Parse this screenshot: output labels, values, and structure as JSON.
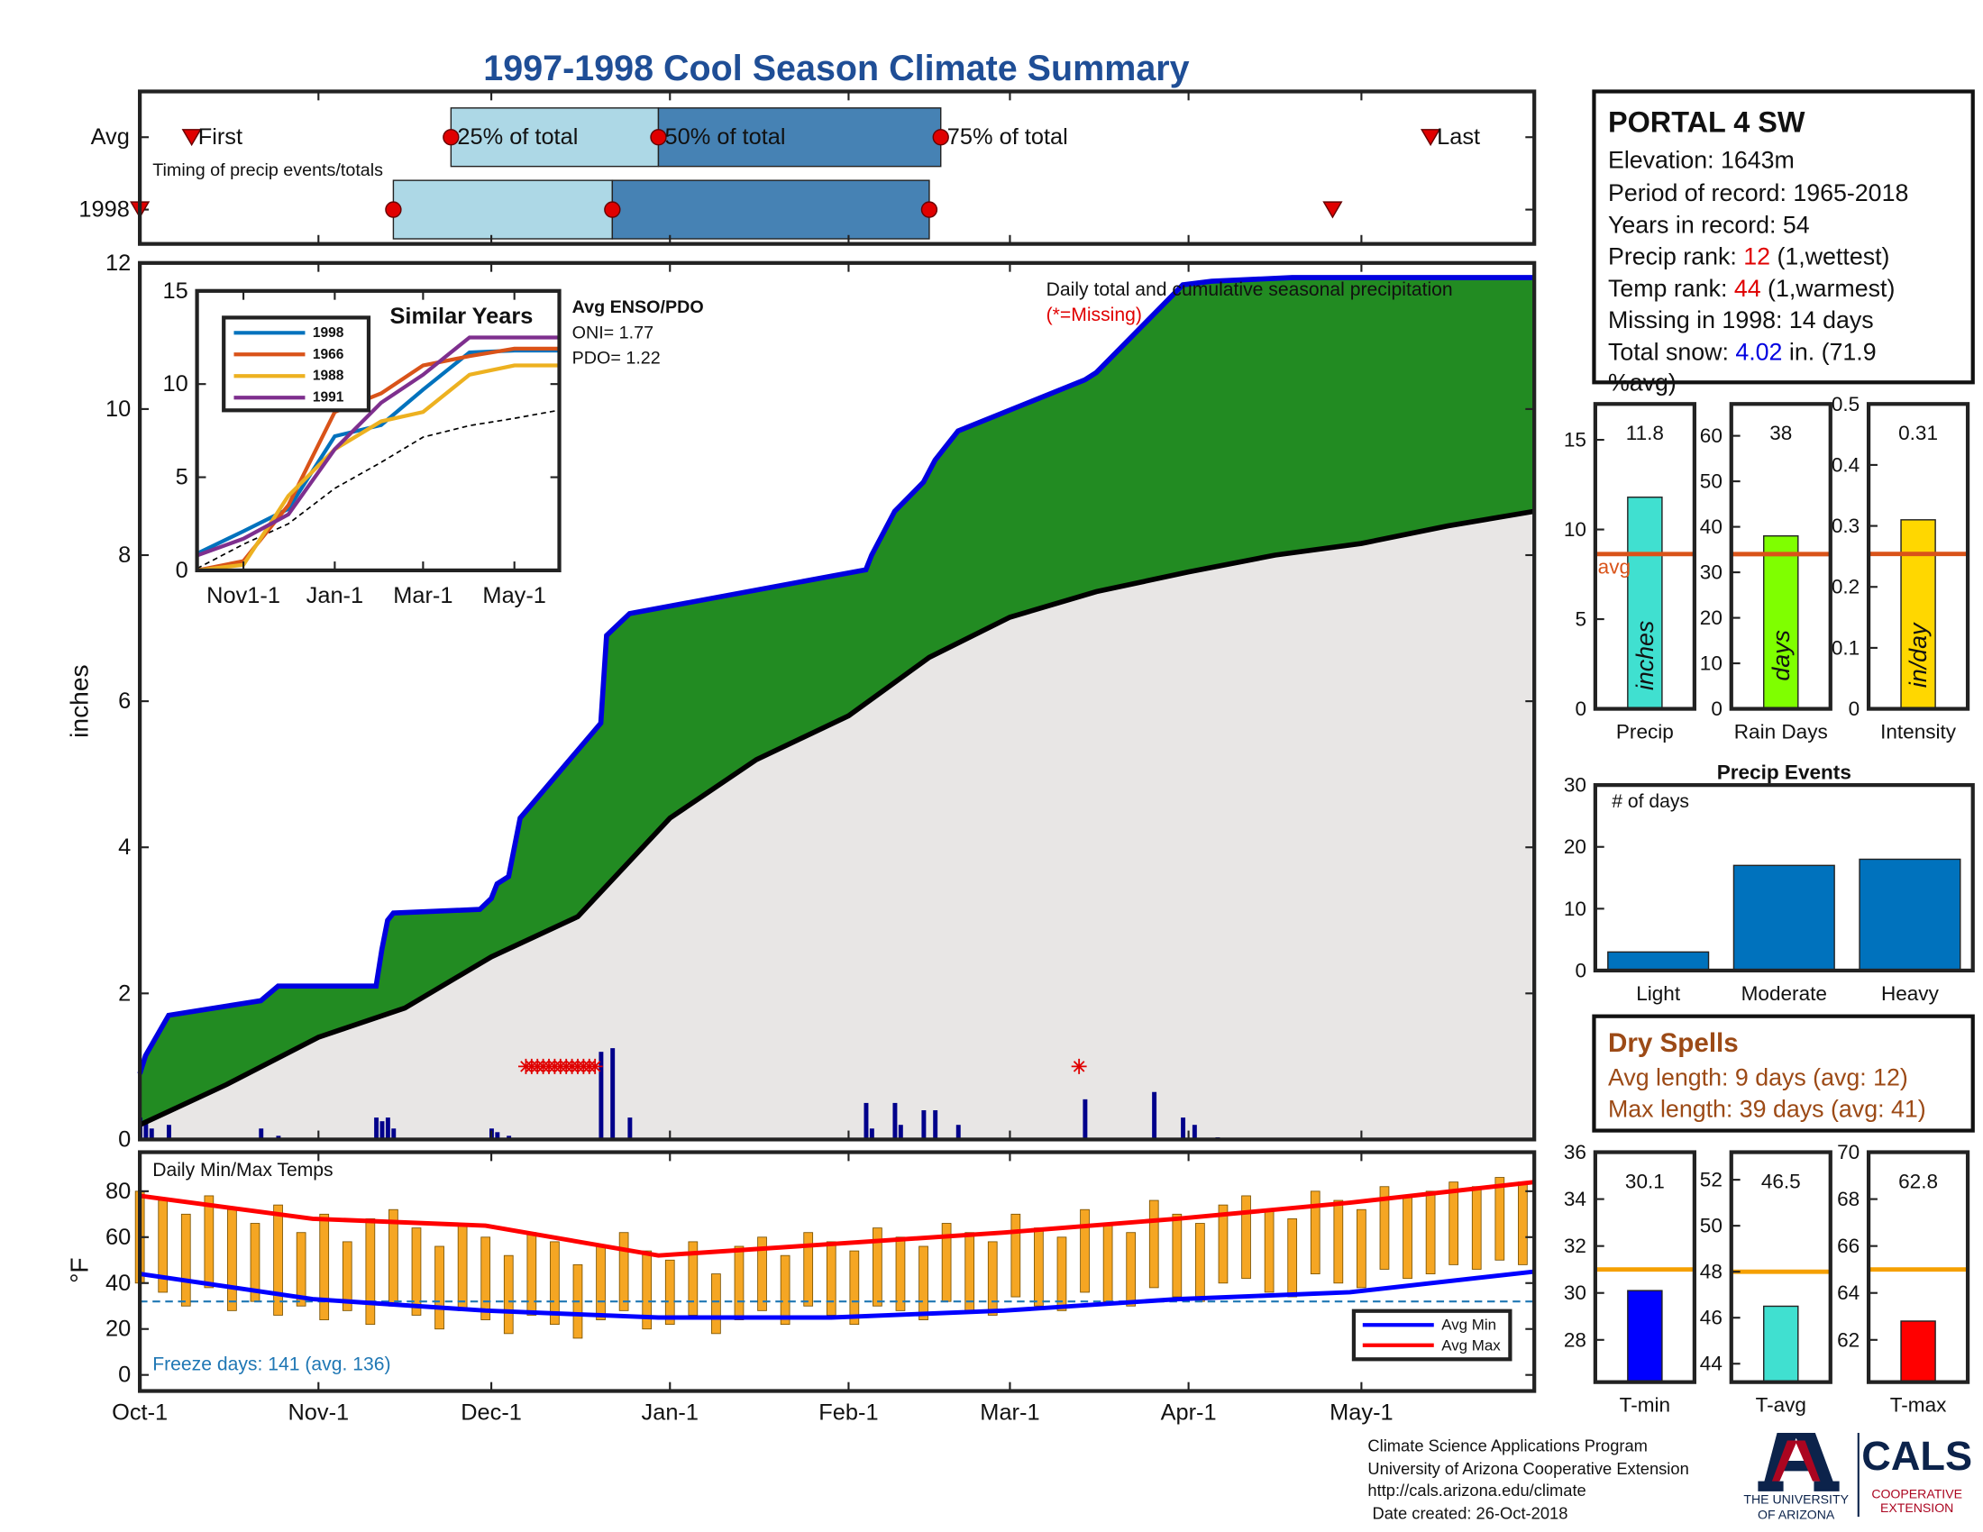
{
  "title": "1997-1998 Cool Season Climate Summary",
  "chart_data": [
    {
      "type": "timing",
      "categories": [
        "Avg",
        "1998"
      ],
      "labels": [
        "First",
        "25% of total",
        "50% of total",
        "75% of total",
        "Last"
      ],
      "values": [
        [
          9,
          54,
          90,
          139,
          224
        ],
        [
          0,
          44,
          82,
          137,
          207
        ]
      ],
      "xlim": [
        0,
        242
      ],
      "annotation": "Timing of precip events/totals",
      "colors": [
        "#add8e6",
        "#4682b4"
      ],
      "marker_color": "#e00000"
    },
    {
      "type": "precip",
      "ylabel": "inches",
      "ylim": [
        0,
        12
      ],
      "yticks": [
        0,
        2,
        4,
        6,
        8,
        10,
        12
      ],
      "xlim": [
        0,
        242
      ],
      "annotation": "Daily total and cumulative seasonal precipitation",
      "missing_label": "(*=Missing)",
      "cumulative": {
        "color": "#0000e0",
        "fill": "#228b22",
        "x": [
          0,
          1,
          5,
          21,
          24,
          41,
          42,
          43,
          44,
          59,
          61,
          62,
          64,
          66,
          80,
          81,
          85,
          126,
          127,
          131,
          136,
          138,
          140,
          142,
          164,
          166,
          176,
          181,
          186,
          200,
          242
        ],
        "values": [
          0.9,
          1.15,
          1.7,
          1.9,
          2.1,
          2.1,
          2.6,
          3.0,
          3.1,
          3.15,
          3.3,
          3.5,
          3.6,
          4.4,
          5.7,
          6.9,
          7.2,
          7.8,
          8.0,
          8.6,
          9.0,
          9.3,
          9.5,
          9.7,
          10.4,
          10.5,
          11.3,
          11.7,
          11.75,
          11.8,
          11.8
        ]
      },
      "average": {
        "color": "#000000",
        "fill": "#e8e6e5",
        "x": [
          0,
          15,
          31,
          46,
          61,
          76,
          92,
          107,
          123,
          137,
          151,
          166,
          182,
          197,
          212,
          227,
          242
        ],
        "values": [
          0.2,
          0.75,
          1.4,
          1.8,
          2.5,
          3.05,
          4.4,
          5.2,
          5.8,
          6.6,
          7.15,
          7.5,
          7.77,
          8.0,
          8.16,
          8.4,
          8.6
        ]
      },
      "daily": {
        "color": "#00008b",
        "x": [
          0,
          1,
          2,
          5,
          21,
          24,
          41,
          42,
          43,
          44,
          61,
          62,
          64,
          80,
          82,
          85,
          126,
          127,
          131,
          132,
          136,
          138,
          142,
          164,
          176,
          181,
          183,
          187
        ],
        "values": [
          0.3,
          0.25,
          0.15,
          0.2,
          0.15,
          0.05,
          0.3,
          0.25,
          0.3,
          0.15,
          0.15,
          0.1,
          0.05,
          1.2,
          1.25,
          0.3,
          0.5,
          0.15,
          0.5,
          0.2,
          0.4,
          0.4,
          0.2,
          0.55,
          0.65,
          0.3,
          0.2,
          0.03
        ]
      },
      "missing": {
        "color": "#e00000",
        "y": 1,
        "x": [
          67,
          68,
          69,
          70,
          71,
          72,
          73,
          74,
          75,
          76,
          77,
          78,
          79,
          163
        ]
      }
    },
    {
      "type": "line",
      "title": "Similar Years",
      "ylim": [
        0,
        15
      ],
      "yticks": [
        0,
        5,
        10,
        15
      ],
      "xlim": [
        0,
        242
      ],
      "xticks": [
        {
          "value": 31,
          "label": "Nov1-1"
        },
        {
          "value": 92,
          "label": "Jan-1"
        },
        {
          "value": 151,
          "label": "Mar-1"
        },
        {
          "value": 212,
          "label": "May-1"
        }
      ],
      "x": [
        0,
        31,
        61,
        92,
        123,
        151,
        182,
        212,
        242
      ],
      "series": [
        {
          "name": "1998",
          "color": "#0072bd",
          "values": [
            0.9,
            2.1,
            3.3,
            7.2,
            7.8,
            9.7,
            11.7,
            11.8,
            11.8
          ]
        },
        {
          "name": "1966",
          "color": "#d95319",
          "values": [
            0,
            0.5,
            3.5,
            8.5,
            9.5,
            11,
            11.5,
            11.9,
            11.9
          ]
        },
        {
          "name": "1988",
          "color": "#edb120",
          "values": [
            0,
            0.3,
            4,
            6.5,
            8,
            8.5,
            10.5,
            11,
            11
          ]
        },
        {
          "name": "1991",
          "color": "#7e2f8e",
          "values": [
            0.8,
            1.7,
            3,
            6.5,
            9,
            10.5,
            12.5,
            12.5,
            12.5
          ]
        }
      ],
      "average": {
        "color": "#000000",
        "values": [
          0.1,
          1.4,
          2.5,
          4.4,
          5.8,
          7.15,
          7.77,
          8.16,
          8.6
        ]
      },
      "enso_title": "Avg ENSO/PDO",
      "oni": "ONI= 1.77",
      "pdo": "PDO= 1.22"
    },
    {
      "type": "range_bar",
      "annotation": "Daily Min/Max Temps",
      "ylabel": "°F",
      "ylim": [
        -7,
        97
      ],
      "yticks": [
        0,
        20,
        40,
        60,
        80
      ],
      "xlim": [
        0,
        242
      ],
      "xticks": [
        {
          "value": 0,
          "label": "Oct-1"
        },
        {
          "value": 31,
          "label": "Nov-1"
        },
        {
          "value": 61,
          "label": "Dec-1"
        },
        {
          "value": 92,
          "label": "Jan-1"
        },
        {
          "value": 123,
          "label": "Feb-1"
        },
        {
          "value": 151,
          "label": "Mar-1"
        },
        {
          "value": 182,
          "label": "Apr-1"
        },
        {
          "value": 212,
          "label": "May-1"
        }
      ],
      "x": [
        0,
        4,
        8,
        12,
        16,
        20,
        24,
        28,
        32,
        36,
        40,
        44,
        48,
        52,
        56,
        60,
        64,
        68,
        72,
        76,
        80,
        84,
        88,
        92,
        96,
        100,
        104,
        108,
        112,
        116,
        120,
        124,
        128,
        132,
        136,
        140,
        144,
        148,
        152,
        156,
        160,
        164,
        168,
        172,
        176,
        180,
        184,
        188,
        192,
        196,
        200,
        204,
        208,
        212,
        216,
        220,
        224,
        228,
        232,
        236,
        240
      ],
      "max": [
        80,
        76,
        70,
        78,
        72,
        66,
        74,
        62,
        70,
        58,
        68,
        72,
        64,
        56,
        66,
        60,
        52,
        62,
        58,
        48,
        56,
        62,
        54,
        50,
        58,
        44,
        56,
        60,
        52,
        62,
        58,
        54,
        64,
        60,
        56,
        66,
        62,
        58,
        70,
        64,
        60,
        72,
        66,
        62,
        76,
        70,
        66,
        74,
        78,
        72,
        68,
        80,
        76,
        72,
        82,
        78,
        80,
        84,
        82,
        86,
        84
      ],
      "min": [
        40,
        36,
        30,
        38,
        28,
        32,
        26,
        30,
        24,
        28,
        22,
        30,
        26,
        20,
        28,
        24,
        18,
        26,
        22,
        16,
        24,
        28,
        20,
        22,
        26,
        18,
        24,
        28,
        22,
        30,
        26,
        22,
        30,
        28,
        24,
        32,
        28,
        26,
        34,
        30,
        28,
        36,
        32,
        30,
        38,
        34,
        32,
        40,
        42,
        36,
        34,
        44,
        40,
        38,
        46,
        42,
        44,
        48,
        46,
        50,
        48
      ],
      "bar_color": "#f5a623",
      "series": [
        {
          "name": "Avg Min",
          "color": "#0000ff",
          "x": [
            0,
            30,
            60,
            90,
            120,
            150,
            180,
            210,
            242
          ],
          "values": [
            44,
            33,
            28,
            25,
            25,
            28,
            33,
            36,
            45
          ]
        },
        {
          "name": "Avg Max",
          "color": "#ff0000",
          "x": [
            0,
            30,
            60,
            90,
            120,
            150,
            180,
            210,
            242
          ],
          "values": [
            78,
            68,
            65,
            52,
            57,
            62,
            68,
            75,
            84
          ]
        }
      ],
      "freeze": 32,
      "freeze_color": "#1f77b4",
      "freeze_label": "Freeze days: 141 (avg. 136)"
    },
    {
      "type": "bar",
      "categories": [
        "Precip"
      ],
      "values": [
        11.8
      ],
      "ylim": [
        0,
        17
      ],
      "yticks": [
        0,
        5,
        10,
        15
      ],
      "color": "#40e0d0",
      "avg": 8.63,
      "avg_label": "avg",
      "avg_color": "#d95319",
      "bar_label": "inches"
    },
    {
      "type": "bar",
      "categories": [
        "Rain Days"
      ],
      "values": [
        38
      ],
      "ylim": [
        0,
        67
      ],
      "yticks": [
        0,
        10,
        20,
        30,
        40,
        50,
        60
      ],
      "color": "#7fff00",
      "avg": 34,
      "avg_color": "#d95319",
      "bar_label": "days"
    },
    {
      "type": "bar",
      "categories": [
        "Intensity"
      ],
      "values": [
        0.31
      ],
      "ylim": [
        0,
        0.5
      ],
      "yticks": [
        0,
        0.1,
        0.2,
        0.3,
        0.4,
        0.5
      ],
      "color": "#ffd700",
      "avg": 0.254,
      "avg_color": "#d95319",
      "bar_label": "in/day"
    },
    {
      "type": "bar",
      "title": "Precip Events",
      "annotation": "# of days",
      "categories": [
        "Light",
        "Moderate",
        "Heavy"
      ],
      "values": [
        3,
        17,
        18
      ],
      "ylim": [
        0,
        30
      ],
      "yticks": [
        0,
        10,
        20,
        30
      ],
      "color": "#0072bd"
    },
    {
      "type": "bar",
      "categories": [
        "T-min"
      ],
      "values": [
        30.1
      ],
      "ylim": [
        26.2,
        36
      ],
      "yticks": [
        28,
        30,
        32,
        34,
        36
      ],
      "color": "#0000ff",
      "avg": 31,
      "avg_color": "#f5a000"
    },
    {
      "type": "bar",
      "categories": [
        "T-avg"
      ],
      "values": [
        46.5
      ],
      "ylim": [
        43.2,
        53.2
      ],
      "yticks": [
        44,
        46,
        48,
        50,
        52
      ],
      "color": "#40e0d0",
      "avg": 48,
      "avg_color": "#f5a000"
    },
    {
      "type": "bar",
      "categories": [
        "T-max"
      ],
      "values": [
        62.8
      ],
      "ylim": [
        60.2,
        70
      ],
      "yticks": [
        62,
        64,
        66,
        68,
        70
      ],
      "color": "#ff0000",
      "avg": 65,
      "avg_color": "#f5a000"
    }
  ],
  "station": {
    "name": "PORTAL 4 SW",
    "elevation": "Elevation: 1643m",
    "period": "Period of record: 1965-2018",
    "years": "Years in record: 54",
    "precip_rank": {
      "label": "Precip rank: ",
      "value": "12",
      "note": " (1,wettest)"
    },
    "temp_rank": {
      "label": "Temp rank: ",
      "value": "44",
      "note": " (1,warmest)"
    },
    "missing": "Missing in 1998: 14 days",
    "snow": {
      "label": "Total snow: ",
      "value": "4.02",
      "note": " in. (71.9",
      "note2": "%avg)"
    }
  },
  "dry_spells": {
    "title": "Dry Spells",
    "avg": "Avg length: 9 days (avg: 12)",
    "max": "Max length: 39 days (avg: 41)"
  },
  "footer": [
    "Climate Science Applications Program",
    "University of Arizona Cooperative Extension",
    "http://cals.arizona.edu/climate",
    " Date created: 26-Oct-2018"
  ],
  "logo": {
    "university": [
      "THE UNIVERSITY",
      "OF ARIZONA"
    ],
    "cals": "CALS",
    "extension": [
      "COOPERATIVE",
      "EXTENSION"
    ]
  }
}
